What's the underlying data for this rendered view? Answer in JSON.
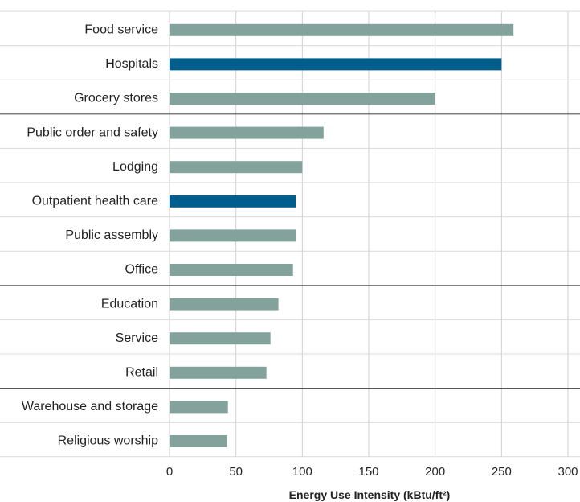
{
  "chart_data": {
    "type": "bar",
    "orientation": "horizontal",
    "categories": [
      "Food service",
      "Hospitals",
      "Grocery stores",
      "Public order and safety",
      "Lodging",
      "Outpatient health care",
      "Public assembly",
      "Office",
      "Education",
      "Service",
      "Retail",
      "Warehouse and storage",
      "Religious worship"
    ],
    "values": [
      259,
      250,
      200,
      116,
      100,
      95,
      95,
      93,
      82,
      76,
      73,
      44,
      43
    ],
    "highlighted": [
      "Hospitals",
      "Outpatient health care"
    ],
    "title": "",
    "xlabel": "Energy Use Intensity (kBtu/ft²)",
    "ylabel": "",
    "xlim": [
      0,
      300
    ],
    "xticks": [
      0,
      50,
      100,
      150,
      200,
      250,
      300
    ],
    "grid": "vertical",
    "group_separators_after": [
      "Grocery stores",
      "Office",
      "Retail"
    ],
    "colors": {
      "bar": "#84a29c",
      "highlight": "#005e8c",
      "grid": "#cfcfcf",
      "row_line": "#d9d9d9",
      "group_line": "#555555",
      "axis": "#444444"
    }
  }
}
